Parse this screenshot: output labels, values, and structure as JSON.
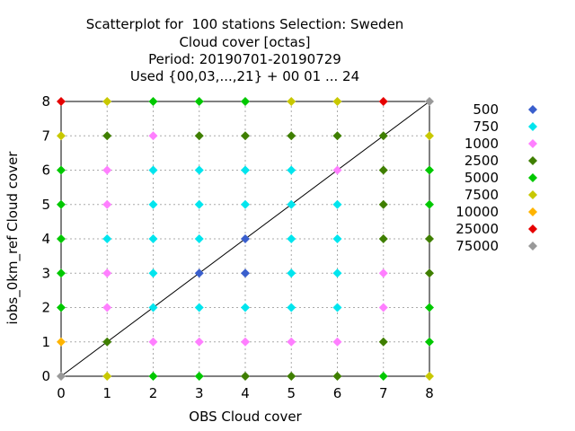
{
  "chart_data": {
    "type": "scatter",
    "title_lines": [
      "Scatterplot for  100 stations Selection: Sweden",
      "Cloud cover [octas]",
      "Period: 20190701-20190729",
      "Used {00,03,...,21} + 00 01 ... 24"
    ],
    "xlabel": "OBS Cloud cover",
    "ylabel": "iobs_0km_ref Cloud cover",
    "xlim": [
      0,
      8
    ],
    "ylim": [
      0,
      8
    ],
    "xticks": [
      "0",
      "1",
      "2",
      "3",
      "4",
      "5",
      "6",
      "7",
      "8"
    ],
    "yticks": [
      "0",
      "1",
      "2",
      "3",
      "4",
      "5",
      "6",
      "7",
      "8"
    ],
    "grid": true,
    "legend_position": "right",
    "diagonal_line": true,
    "legend": [
      {
        "label": "500",
        "color": "#3a5fcd"
      },
      {
        "label": "750",
        "color": "#00e5ee"
      },
      {
        "label": "1000",
        "color": "#ff7fff"
      },
      {
        "label": "2500",
        "color": "#3f7f00"
      },
      {
        "label": "5000",
        "color": "#00c800"
      },
      {
        "label": "7500",
        "color": "#c8c800"
      },
      {
        "label": "10000",
        "color": "#ffb400"
      },
      {
        "label": "25000",
        "color": "#e60000"
      },
      {
        "label": "75000",
        "color": "#999999"
      }
    ],
    "grid_colors": [
      [
        "#999999",
        "#c8c800",
        "#00c800",
        "#00c800",
        "#3f7f00",
        "#3f7f00",
        "#3f7f00",
        "#00c800",
        "#c8c800"
      ],
      [
        "#ffb400",
        "#3f7f00",
        "#ff7fff",
        "#ff7fff",
        "#ff7fff",
        "#ff7fff",
        "#ff7fff",
        "#3f7f00",
        "#00c800"
      ],
      [
        "#00c800",
        "#ff7fff",
        "#00e5ee",
        "#00e5ee",
        "#00e5ee",
        "#00e5ee",
        "#00e5ee",
        "#ff7fff",
        "#00c800"
      ],
      [
        "#00c800",
        "#ff7fff",
        "#00e5ee",
        "#3a5fcd",
        "#3a5fcd",
        "#00e5ee",
        "#00e5ee",
        "#ff7fff",
        "#3f7f00"
      ],
      [
        "#00c800",
        "#00e5ee",
        "#00e5ee",
        "#00e5ee",
        "#3a5fcd",
        "#00e5ee",
        "#00e5ee",
        "#3f7f00",
        "#3f7f00"
      ],
      [
        "#00c800",
        "#ff7fff",
        "#00e5ee",
        "#00e5ee",
        "#00e5ee",
        "#00e5ee",
        "#00e5ee",
        "#3f7f00",
        "#00c800"
      ],
      [
        "#00c800",
        "#ff7fff",
        "#00e5ee",
        "#00e5ee",
        "#00e5ee",
        "#00e5ee",
        "#ff7fff",
        "#3f7f00",
        "#00c800"
      ],
      [
        "#c8c800",
        "#3f7f00",
        "#ff7fff",
        "#3f7f00",
        "#3f7f00",
        "#3f7f00",
        "#3f7f00",
        "#3f7f00",
        "#c8c800"
      ],
      [
        "#e60000",
        "#c8c800",
        "#00c800",
        "#00c800",
        "#00c800",
        "#c8c800",
        "#c8c800",
        "#e60000",
        "#999999"
      ]
    ]
  }
}
